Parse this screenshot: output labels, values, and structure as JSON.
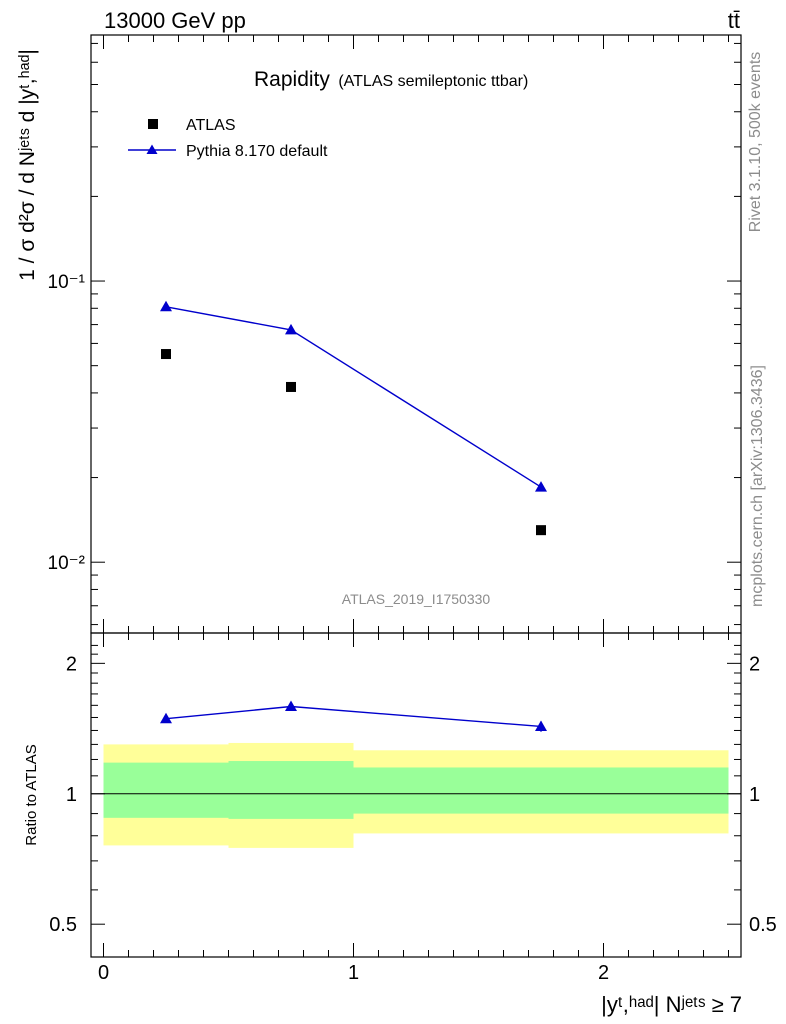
{
  "header": {
    "left": "13000 GeV pp",
    "right": "tt̄"
  },
  "title": {
    "main": "Rapidity",
    "sub": "(ATLAS semileptonic ttbar)"
  },
  "side": {
    "top": "Rivet 3.1.10,  500k events",
    "bottom": "mcplots.cern.ch [arXiv:1306.3436]"
  },
  "watermark": "ATLAS_2019_I1750330",
  "labels": {
    "ylabel_top": "1 / σ d²σ / d Nʲᵉᵗˢ d |yᵗ,ʰᵃᵈ|",
    "ylabel_bottom": "Ratio to ATLAS",
    "xlabel": "|yᵗ,ʰᵃᵈ| Nʲᵉᵗˢ ≥ 7"
  },
  "colors": {
    "data": "#000000",
    "mc": "#0000cc",
    "band_inner": "#99ff99",
    "band_outer": "#ffff99"
  },
  "chart_data": [
    {
      "type": "scatter",
      "panel": "main",
      "title": "Rapidity (ATLAS semileptonic ttbar)",
      "xlabel": "|y^{t,had}| N^{jets} ≥ 7",
      "ylabel": "1 / σ d²σ / d N^{jets} d |y^{t,had}|",
      "yscale": "log",
      "xlim": [
        -0.05,
        2.55
      ],
      "ylim": [
        0.0056,
        0.75
      ],
      "ytick_labels": [
        "10⁻²",
        "10⁻¹"
      ],
      "legend": "top-left",
      "series": [
        {
          "name": "ATLAS",
          "marker": "square",
          "x": [
            0.25,
            0.75,
            1.75
          ],
          "y": [
            0.055,
            0.042,
            0.013
          ]
        },
        {
          "name": "Pythia 8.170 default",
          "marker": "triangle",
          "line": true,
          "x": [
            0.25,
            0.75,
            1.75
          ],
          "y": [
            0.081,
            0.067,
            0.0185
          ]
        }
      ]
    },
    {
      "type": "line",
      "panel": "ratio",
      "ylabel": "Ratio to ATLAS",
      "xlabel": "|y^{t,had}| N^{jets} ≥ 7",
      "ylim": [
        0.42,
        2.35
      ],
      "xlim": [
        -0.05,
        2.55
      ],
      "xticks": [
        0,
        1,
        2
      ],
      "ytick_labels": [
        "0.5",
        "1",
        "2"
      ],
      "bands": [
        {
          "x": [
            0,
            0.5
          ],
          "inner": [
            0.88,
            1.18
          ],
          "outer": [
            0.76,
            1.3
          ]
        },
        {
          "x": [
            0.5,
            1.0
          ],
          "inner": [
            0.875,
            1.19
          ],
          "outer": [
            0.75,
            1.31
          ]
        },
        {
          "x": [
            1.0,
            2.5
          ],
          "inner": [
            0.9,
            1.15
          ],
          "outer": [
            0.81,
            1.26
          ]
        }
      ],
      "series": [
        {
          "name": "Pythia 8.170 default",
          "x": [
            0.25,
            0.75,
            1.75
          ],
          "y": [
            1.49,
            1.59,
            1.43
          ],
          "yerr": [
            0.01,
            0.01,
            0.04
          ]
        }
      ]
    }
  ]
}
